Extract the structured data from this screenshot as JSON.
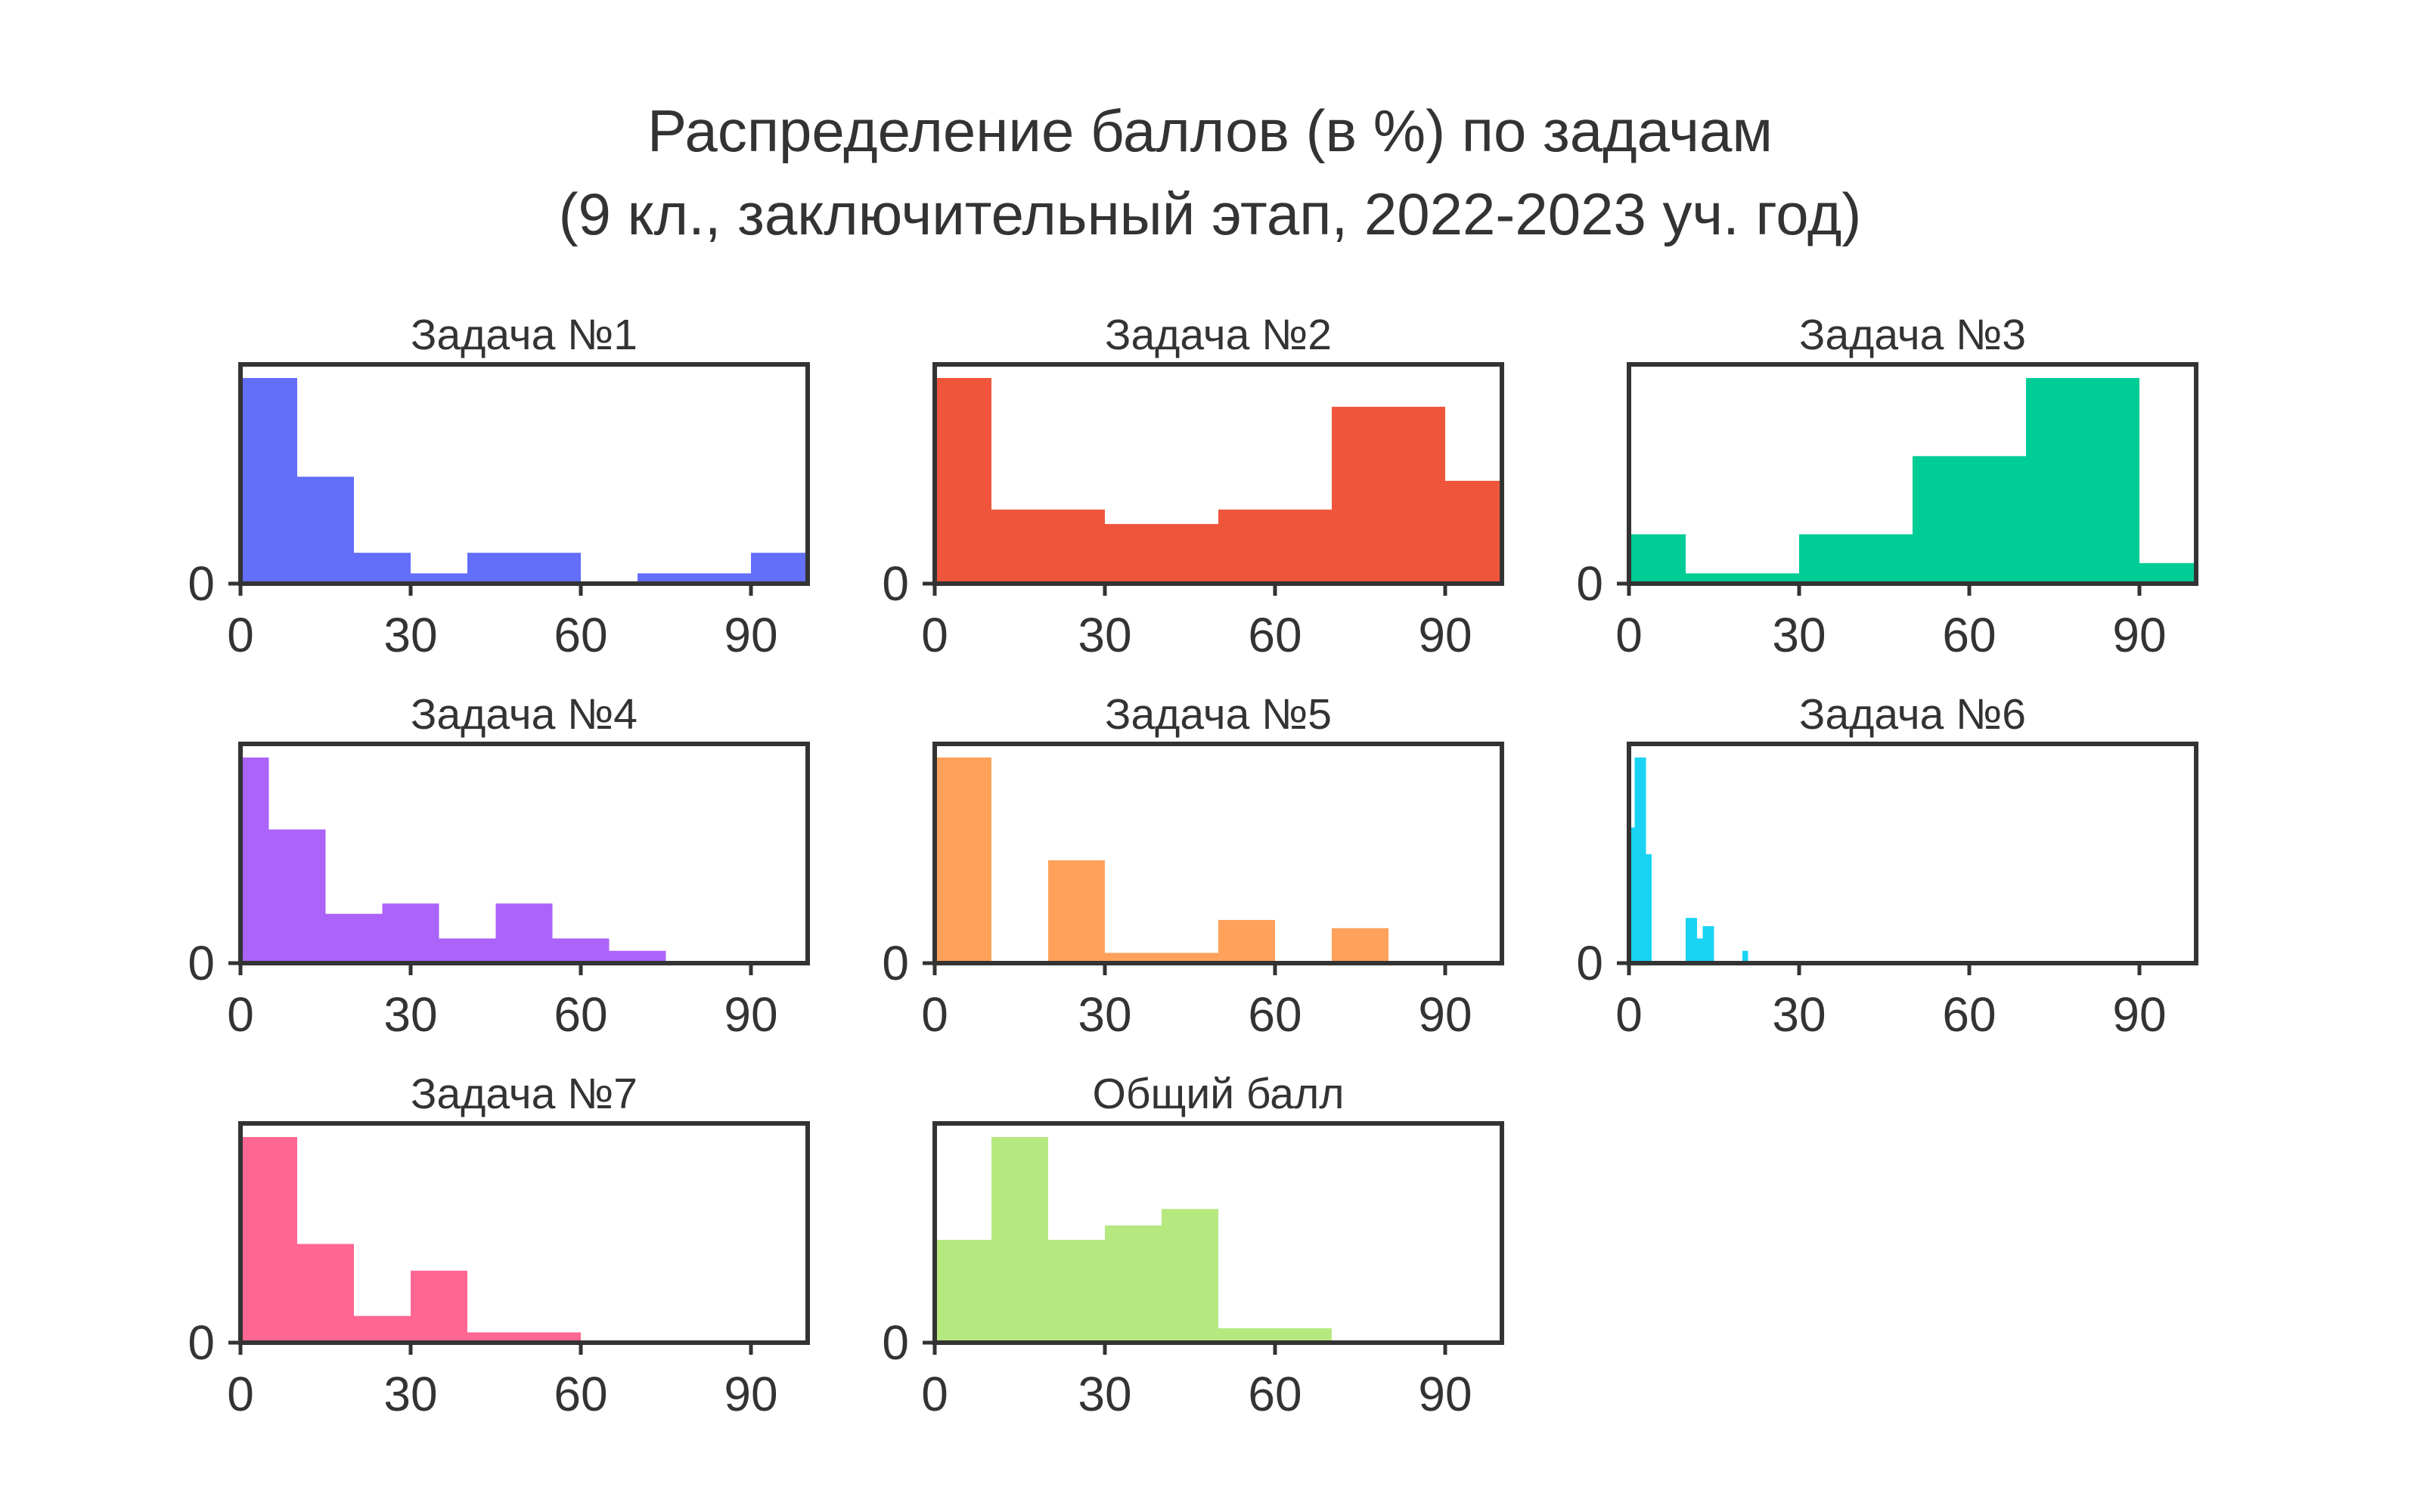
{
  "figure": {
    "title_line1": "Распределение баллов (в %) по задачам",
    "title_line2": "(9 кл., заключительный этап, 2022-2023 уч. год)"
  },
  "chart_data": [
    {
      "type": "bar",
      "title": "Задача №1",
      "color": "#636efa",
      "xlim": [
        0,
        100
      ],
      "xticks": [
        "0",
        "30",
        "60",
        "90"
      ],
      "yticks": [
        "0"
      ],
      "bins": [
        [
          0,
          10
        ],
        [
          10,
          20
        ],
        [
          20,
          30
        ],
        [
          30,
          40
        ],
        [
          40,
          50
        ],
        [
          50,
          60
        ],
        [
          60,
          70
        ],
        [
          70,
          80
        ],
        [
          80,
          90
        ],
        [
          90,
          100
        ]
      ],
      "values": [
        100,
        52,
        15,
        5,
        15,
        15,
        0,
        5,
        5,
        15
      ]
    },
    {
      "type": "bar",
      "title": "Задача №2",
      "color": "#ef553b",
      "xlim": [
        0,
        100
      ],
      "xticks": [
        "0",
        "30",
        "60",
        "90"
      ],
      "yticks": [
        "0"
      ],
      "bins": [
        [
          0,
          10
        ],
        [
          10,
          20
        ],
        [
          20,
          30
        ],
        [
          30,
          40
        ],
        [
          40,
          50
        ],
        [
          50,
          60
        ],
        [
          60,
          70
        ],
        [
          70,
          80
        ],
        [
          80,
          90
        ],
        [
          90,
          100
        ]
      ],
      "values": [
        100,
        36,
        36,
        29,
        29,
        36,
        36,
        86,
        86,
        50
      ]
    },
    {
      "type": "bar",
      "title": "Задача №3",
      "color": "#00cc96",
      "xlim": [
        0,
        100
      ],
      "xticks": [
        "0",
        "30",
        "60",
        "90"
      ],
      "yticks": [
        "0"
      ],
      "bins": [
        [
          0,
          10
        ],
        [
          10,
          20
        ],
        [
          20,
          30
        ],
        [
          30,
          40
        ],
        [
          40,
          50
        ],
        [
          50,
          60
        ],
        [
          60,
          70
        ],
        [
          70,
          80
        ],
        [
          80,
          90
        ],
        [
          90,
          100
        ]
      ],
      "values": [
        24,
        5,
        5,
        24,
        24,
        62,
        62,
        100,
        100,
        10
      ]
    },
    {
      "type": "bar",
      "title": "Задача №4",
      "color": "#ab63fa",
      "xlim": [
        0,
        100
      ],
      "xticks": [
        "0",
        "30",
        "60",
        "90"
      ],
      "yticks": [
        "0"
      ],
      "bins": [
        [
          0,
          5
        ],
        [
          5,
          15
        ],
        [
          15,
          25
        ],
        [
          25,
          35
        ],
        [
          35,
          45
        ],
        [
          45,
          55
        ],
        [
          55,
          65
        ],
        [
          65,
          75
        ],
        [
          75,
          85
        ],
        [
          85,
          95
        ],
        [
          95,
          100
        ]
      ],
      "values": [
        100,
        65,
        24,
        29,
        12,
        29,
        12,
        6,
        0,
        0,
        0
      ]
    },
    {
      "type": "bar",
      "title": "Задача №5",
      "color": "#ffa15a",
      "xlim": [
        0,
        100
      ],
      "xticks": [
        "0",
        "30",
        "60",
        "90"
      ],
      "yticks": [
        "0"
      ],
      "bins": [
        [
          0,
          10
        ],
        [
          10,
          20
        ],
        [
          20,
          30
        ],
        [
          30,
          40
        ],
        [
          40,
          50
        ],
        [
          50,
          60
        ],
        [
          60,
          70
        ],
        [
          70,
          80
        ],
        [
          80,
          90
        ],
        [
          90,
          100
        ]
      ],
      "values": [
        100,
        0,
        50,
        5,
        5,
        21,
        0,
        17,
        0,
        0
      ]
    },
    {
      "type": "bar",
      "title": "Задача №6",
      "color": "#19d3f3",
      "xlim": [
        0,
        100
      ],
      "xticks": [
        "0",
        "30",
        "60",
        "90"
      ],
      "yticks": [
        "0"
      ],
      "bins": [
        [
          0,
          1
        ],
        [
          1,
          2
        ],
        [
          2,
          3
        ],
        [
          3,
          4
        ],
        [
          4,
          5
        ],
        [
          5,
          6
        ],
        [
          6,
          7
        ],
        [
          7,
          8
        ],
        [
          8,
          9
        ],
        [
          9,
          10
        ],
        [
          10,
          11
        ],
        [
          11,
          12
        ],
        [
          12,
          13
        ],
        [
          13,
          14
        ],
        [
          14,
          15
        ],
        [
          15,
          16
        ],
        [
          16,
          17
        ],
        [
          17,
          18
        ],
        [
          18,
          19
        ],
        [
          19,
          20
        ],
        [
          20,
          21
        ],
        [
          21,
          100
        ]
      ],
      "values": [
        66,
        100,
        100,
        53,
        0,
        0,
        0,
        0,
        0,
        0,
        22,
        22,
        12,
        18,
        18,
        0,
        0,
        0,
        0,
        0,
        6,
        0
      ]
    },
    {
      "type": "bar",
      "title": "Задача №7",
      "color": "#ff6692",
      "xlim": [
        0,
        100
      ],
      "xticks": [
        "0",
        "30",
        "60",
        "90"
      ],
      "yticks": [
        "0"
      ],
      "bins": [
        [
          0,
          10
        ],
        [
          10,
          20
        ],
        [
          20,
          30
        ],
        [
          30,
          40
        ],
        [
          40,
          50
        ],
        [
          50,
          60
        ],
        [
          60,
          70
        ],
        [
          70,
          80
        ],
        [
          80,
          90
        ],
        [
          90,
          100
        ]
      ],
      "values": [
        100,
        48,
        13,
        35,
        5,
        5,
        0,
        0,
        0,
        0
      ]
    },
    {
      "type": "bar",
      "title": "Общий балл",
      "color": "#b6e880",
      "xlim": [
        0,
        100
      ],
      "xticks": [
        "0",
        "30",
        "60",
        "90"
      ],
      "yticks": [
        "0"
      ],
      "bins": [
        [
          0,
          10
        ],
        [
          10,
          20
        ],
        [
          20,
          30
        ],
        [
          30,
          40
        ],
        [
          40,
          50
        ],
        [
          50,
          60
        ],
        [
          60,
          70
        ],
        [
          70,
          80
        ],
        [
          80,
          90
        ],
        [
          90,
          100
        ]
      ],
      "values": [
        50,
        100,
        50,
        57,
        65,
        7,
        7,
        0,
        0,
        0
      ]
    }
  ]
}
